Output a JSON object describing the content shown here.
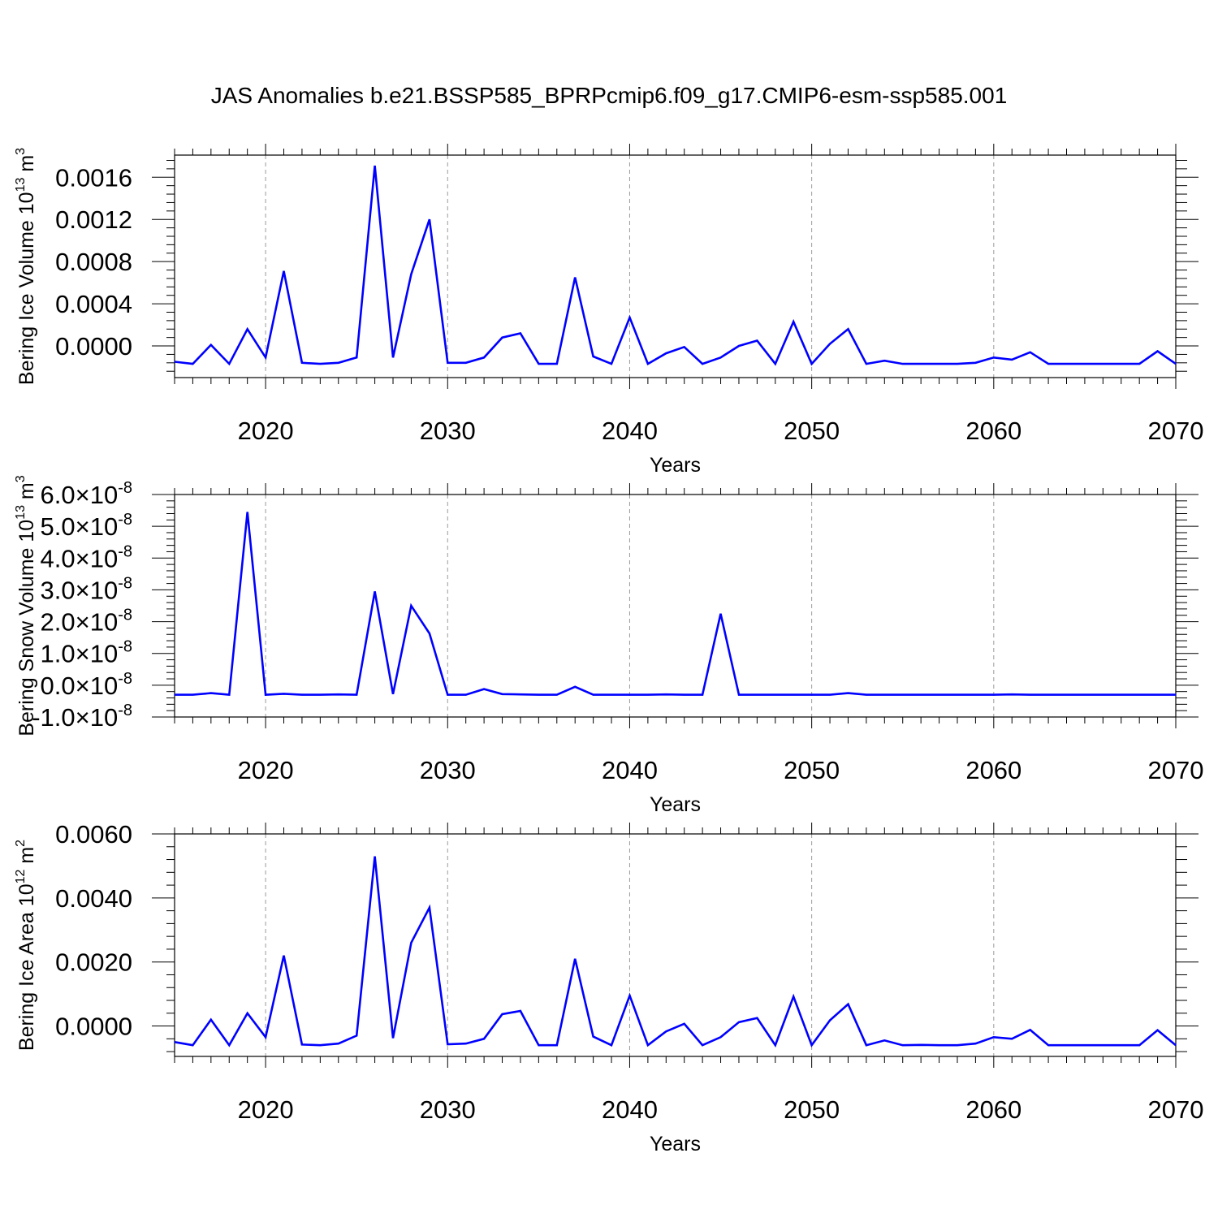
{
  "title": "JAS Anomalies b.e21.BSSP585_BPRPcmip6.f09_g17.CMIP6-esm-ssp585.001",
  "colors": {
    "line": "#0000ff",
    "axis": "#000000",
    "grid": "#9a9a9a",
    "background": "#ffffff"
  },
  "chart_data": [
    {
      "type": "line",
      "title": "JAS Anomalies b.e21.BSSP585_BPRPcmip6.f09_g17.CMIP6-esm-ssp585.001",
      "xlabel": "Years",
      "ylabel": {
        "main": "Bering Ice Volume 10",
        "sup": "13",
        "unit": " m",
        "unit_sup": "3"
      },
      "xlim": [
        2015,
        2070
      ],
      "ylim": [
        -0.0003,
        0.00181
      ],
      "x_ticks": [
        2020,
        2030,
        2040,
        2050,
        2060,
        2070
      ],
      "x_tick_labels": [
        "2020",
        "2030",
        "2040",
        "2050",
        "2060",
        "2070"
      ],
      "y_ticks": [
        0.0,
        0.0004,
        0.0008,
        0.0012,
        0.0016
      ],
      "y_tick_labels": [
        "0.0000",
        "0.0004",
        "0.0008",
        "0.0012",
        "0.0016"
      ],
      "grid": "vertical dashed at major x ticks",
      "series": [
        {
          "color": "#0000ff",
          "x": [
            2015,
            2016,
            2017,
            2018,
            2019,
            2020,
            2021,
            2022,
            2023,
            2024,
            2025,
            2026,
            2027,
            2028,
            2029,
            2030,
            2031,
            2032,
            2033,
            2034,
            2035,
            2036,
            2037,
            2038,
            2039,
            2040,
            2041,
            2042,
            2043,
            2044,
            2045,
            2046,
            2047,
            2048,
            2049,
            2050,
            2051,
            2052,
            2053,
            2054,
            2055,
            2056,
            2057,
            2058,
            2059,
            2060,
            2061,
            2062,
            2063,
            2064,
            2065,
            2066,
            2067,
            2068,
            2069,
            2070
          ],
          "values": [
            -0.00015,
            -0.00017,
            1e-05,
            -0.00017,
            0.00016,
            -0.00011,
            0.00071,
            -0.00016,
            -0.00017,
            -0.00016,
            -0.00011,
            0.00171,
            -0.00011,
            0.00068,
            0.0012,
            -0.00016,
            -0.00016,
            -0.00011,
            8e-05,
            0.00012,
            -0.00017,
            -0.00017,
            0.00065,
            -0.0001,
            -0.00017,
            0.00027,
            -0.00017,
            -7e-05,
            -1e-05,
            -0.00017,
            -0.00011,
            0.0,
            5e-05,
            -0.00017,
            0.00023,
            -0.00017,
            2e-05,
            0.00016,
            -0.00017,
            -0.00014,
            -0.00017,
            -0.00017,
            -0.00017,
            -0.00017,
            -0.00016,
            -0.00011,
            -0.00013,
            -6e-05,
            -0.00017,
            -0.00017,
            -0.00017,
            -0.00017,
            -0.00017,
            -0.00017,
            -5e-05,
            -0.00017
          ]
        }
      ]
    },
    {
      "type": "line",
      "xlabel": "Years",
      "ylabel": {
        "main": "Bering Snow Volume 10",
        "sup": "13",
        "unit": " m",
        "unit_sup": "3"
      },
      "xlim": [
        2015,
        2070
      ],
      "ylim": [
        -1e-08,
        6e-08
      ],
      "x_ticks": [
        2020,
        2030,
        2040,
        2050,
        2060,
        2070
      ],
      "x_tick_labels": [
        "2020",
        "2030",
        "2040",
        "2050",
        "2060",
        "2070"
      ],
      "y_ticks": [
        -1e-08,
        0.0,
        1e-08,
        2e-08,
        3e-08,
        4e-08,
        5e-08,
        6e-08
      ],
      "y_tick_labels": [
        {
          "mant": "-1.0",
          "times": "×",
          "base": "10",
          "exp": "-8"
        },
        {
          "mant": "0.0",
          "times": "×",
          "base": "10",
          "exp": "-8"
        },
        {
          "mant": "1.0",
          "times": "×",
          "base": "10",
          "exp": "-8"
        },
        {
          "mant": "2.0",
          "times": "×",
          "base": "10",
          "exp": "-8"
        },
        {
          "mant": "3.0",
          "times": "×",
          "base": "10",
          "exp": "-8"
        },
        {
          "mant": "4.0",
          "times": "×",
          "base": "10",
          "exp": "-8"
        },
        {
          "mant": "5.0",
          "times": "×",
          "base": "10",
          "exp": "-8"
        },
        {
          "mant": "6.0",
          "times": "×",
          "base": "10",
          "exp": "-8"
        }
      ],
      "grid": "vertical dashed at major x ticks",
      "series": [
        {
          "color": "#0000ff",
          "x": [
            2015,
            2016,
            2017,
            2018,
            2019,
            2020,
            2021,
            2022,
            2023,
            2024,
            2025,
            2026,
            2027,
            2028,
            2029,
            2030,
            2031,
            2032,
            2033,
            2034,
            2035,
            2036,
            2037,
            2038,
            2039,
            2040,
            2041,
            2042,
            2043,
            2044,
            2045,
            2046,
            2047,
            2048,
            2049,
            2050,
            2051,
            2052,
            2053,
            2054,
            2055,
            2056,
            2057,
            2058,
            2059,
            2060,
            2061,
            2062,
            2063,
            2064,
            2065,
            2066,
            2067,
            2068,
            2069,
            2070
          ],
          "values": [
            -3e-09,
            -3e-09,
            -2.5e-09,
            -3e-09,
            5.45e-08,
            -3e-09,
            -2.7e-09,
            -3e-09,
            -3e-09,
            -2.9e-09,
            -3e-09,
            2.95e-08,
            -2.8e-09,
            2.5e-08,
            1.63e-08,
            -3e-09,
            -3e-09,
            -1.2e-09,
            -2.8e-09,
            -2.9e-09,
            -3e-09,
            -3e-09,
            -5e-10,
            -3e-09,
            -3e-09,
            -3e-09,
            -3e-09,
            -2.9e-09,
            -3e-09,
            -3e-09,
            2.25e-08,
            -3e-09,
            -3e-09,
            -3e-09,
            -3e-09,
            -3e-09,
            -3e-09,
            -2.5e-09,
            -3e-09,
            -3e-09,
            -3e-09,
            -3e-09,
            -3e-09,
            -3e-09,
            -3e-09,
            -3e-09,
            -2.9e-09,
            -3e-09,
            -3e-09,
            -3e-09,
            -3e-09,
            -3e-09,
            -3e-09,
            -3e-09,
            -3e-09,
            -3e-09
          ]
        }
      ]
    },
    {
      "type": "line",
      "xlabel": "Years",
      "ylabel": {
        "main": "Bering Ice Area 10",
        "sup": "12",
        "unit": " m",
        "unit_sup": "2"
      },
      "xlim": [
        2015,
        2070
      ],
      "ylim": [
        -0.00095,
        0.006
      ],
      "x_ticks": [
        2020,
        2030,
        2040,
        2050,
        2060,
        2070
      ],
      "x_tick_labels": [
        "2020",
        "2030",
        "2040",
        "2050",
        "2060",
        "2070"
      ],
      "y_ticks": [
        0.0,
        0.002,
        0.004,
        0.006
      ],
      "y_tick_labels": [
        "0.0000",
        "0.0020",
        "0.0040",
        "0.0060"
      ],
      "grid": "vertical dashed at major x ticks",
      "series": [
        {
          "color": "#0000ff",
          "x": [
            2015,
            2016,
            2017,
            2018,
            2019,
            2020,
            2021,
            2022,
            2023,
            2024,
            2025,
            2026,
            2027,
            2028,
            2029,
            2030,
            2031,
            2032,
            2033,
            2034,
            2035,
            2036,
            2037,
            2038,
            2039,
            2040,
            2041,
            2042,
            2043,
            2044,
            2045,
            2046,
            2047,
            2048,
            2049,
            2050,
            2051,
            2052,
            2053,
            2054,
            2055,
            2056,
            2057,
            2058,
            2059,
            2060,
            2061,
            2062,
            2063,
            2064,
            2065,
            2066,
            2067,
            2068,
            2069,
            2070
          ],
          "values": [
            -0.0005,
            -0.0006,
            0.0002,
            -0.0006,
            0.0004,
            -0.00035,
            0.0022,
            -0.00058,
            -0.0006,
            -0.00055,
            -0.0003,
            0.0053,
            -0.00038,
            0.0026,
            0.0037,
            -0.00057,
            -0.00055,
            -0.0004,
            0.00037,
            0.00047,
            -0.0006,
            -0.0006,
            0.0021,
            -0.00033,
            -0.0006,
            0.00095,
            -0.0006,
            -0.00017,
            7e-05,
            -0.0006,
            -0.00035,
            0.00012,
            0.00025,
            -0.0006,
            0.00092,
            -0.0006,
            0.00018,
            0.00068,
            -0.0006,
            -0.00045,
            -0.0006,
            -0.00059,
            -0.0006,
            -0.0006,
            -0.00055,
            -0.00035,
            -0.0004,
            -0.00012,
            -0.0006,
            -0.0006,
            -0.0006,
            -0.0006,
            -0.0006,
            -0.0006,
            -0.00013,
            -0.0006
          ]
        }
      ]
    }
  ]
}
